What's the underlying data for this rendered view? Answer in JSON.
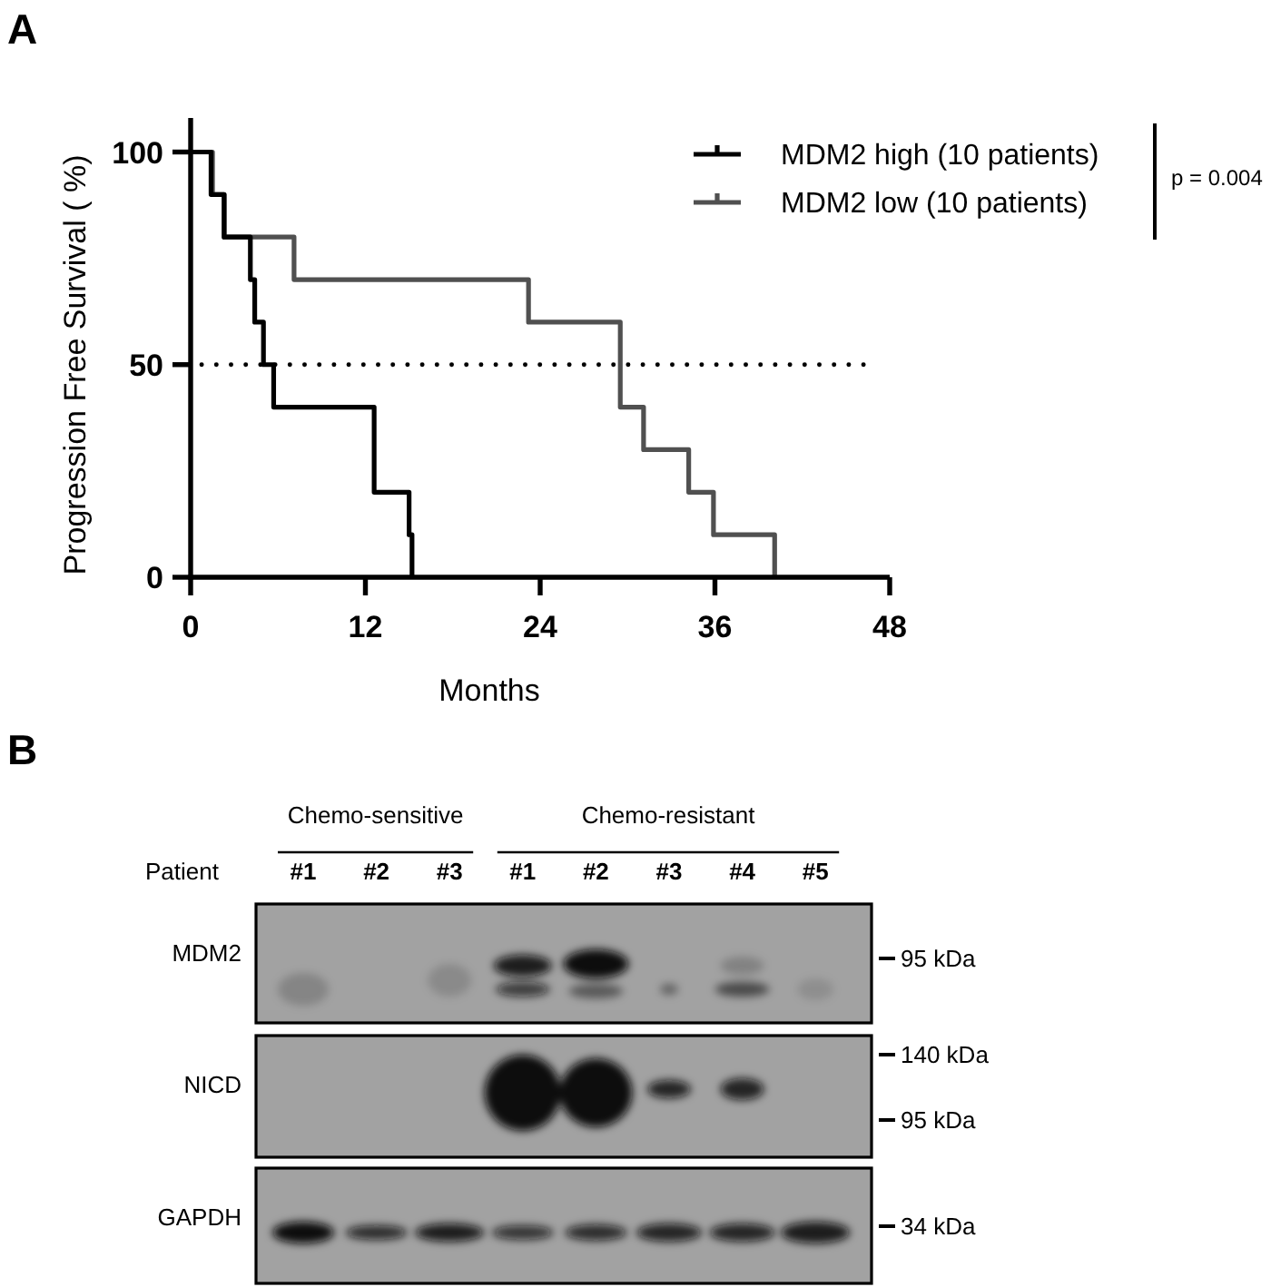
{
  "chart_data": {
    "type": "step",
    "xlabel": "Months",
    "ylabel": "Progression Free Survival ( %)",
    "xlim": [
      0,
      48
    ],
    "xticks": [
      0,
      12,
      24,
      36,
      48
    ],
    "ylim": [
      0,
      108
    ],
    "yticks": [
      0,
      50,
      100
    ],
    "legend": "top right",
    "series": [
      {
        "name": "MDM2 high (10 patients)",
        "color": "#000000",
        "x": [
          0,
          1.4,
          2.3,
          4.1,
          4.4,
          5.0,
          5.7,
          12.6,
          15.0,
          15.2
        ],
        "values": [
          100,
          90,
          80,
          70,
          60,
          50,
          40,
          20,
          10,
          0
        ]
      },
      {
        "name": "MDM2 low (10 patients)",
        "color": "#505050",
        "x": [
          0,
          1.5,
          2.3,
          7.1,
          23.2,
          29.5,
          31.1,
          34.2,
          35.9,
          40.1
        ],
        "values": [
          100,
          90,
          80,
          70,
          60,
          40,
          30,
          20,
          10,
          0
        ]
      }
    ],
    "ref_lines": [
      {
        "axis": "y",
        "value": 50,
        "line_style": "dotted",
        "color": "#000000"
      }
    ],
    "annotations": [
      "A",
      "p = 0.004",
      "B",
      "Chemo-sensitive",
      "Chemo-resistant",
      "Patient",
      "#1",
      "#2",
      "#3",
      "#1",
      "#2",
      "#3",
      "#4",
      "#5",
      "MDM2",
      "NICD",
      "GAPDH",
      "95 kDa",
      "140 kDa",
      "95 kDa",
      "34 kDa"
    ]
  }
}
